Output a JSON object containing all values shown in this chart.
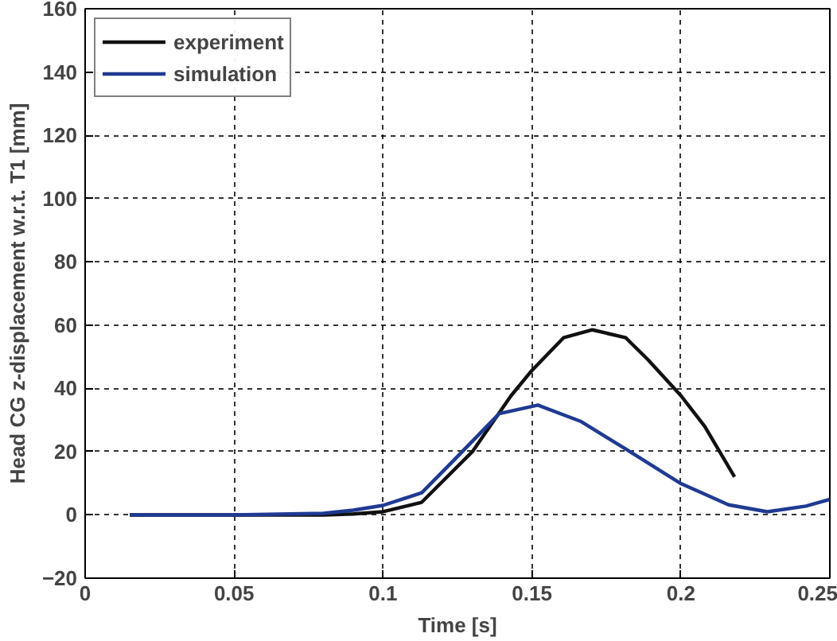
{
  "chart_data": {
    "type": "line",
    "xlabel": "Time [s]",
    "ylabel": "Head CG z-displacement w.r.t. T1 [mm]",
    "xlim": [
      0,
      0.25
    ],
    "ylim": [
      -20,
      160
    ],
    "xticks": [
      0,
      0.05,
      0.1,
      0.15,
      0.2,
      0.25
    ],
    "yticks": [
      -20,
      0,
      20,
      40,
      60,
      80,
      100,
      120,
      140,
      160
    ],
    "grid": true,
    "legend": "top left",
    "line_style": "solid",
    "series": [
      {
        "name": "experiment",
        "color": "#111111",
        "x": [
          0.015,
          0.05,
          0.08,
          0.09,
          0.1,
          0.113,
          0.13,
          0.143,
          0.15,
          0.1606,
          0.1703,
          0.1815,
          0.189,
          0.2,
          0.208,
          0.218
        ],
        "values": [
          0,
          0,
          0,
          0.3,
          1,
          4,
          20,
          37.7,
          45.7,
          56,
          58.5,
          56,
          49,
          37.7,
          28,
          12
        ]
      },
      {
        "name": "simulation",
        "color": "#1f3a93",
        "x": [
          0.015,
          0.05,
          0.08,
          0.09,
          0.1,
          0.113,
          0.124,
          0.139,
          0.152,
          0.1663,
          0.1815,
          0.2,
          0.216,
          0.229,
          0.242,
          0.25
        ],
        "values": [
          0,
          0,
          0.5,
          1.5,
          3,
          7,
          17.5,
          32,
          34.7,
          29.6,
          20.8,
          9.9,
          3.2,
          1,
          2.8,
          4.9
        ]
      }
    ]
  }
}
